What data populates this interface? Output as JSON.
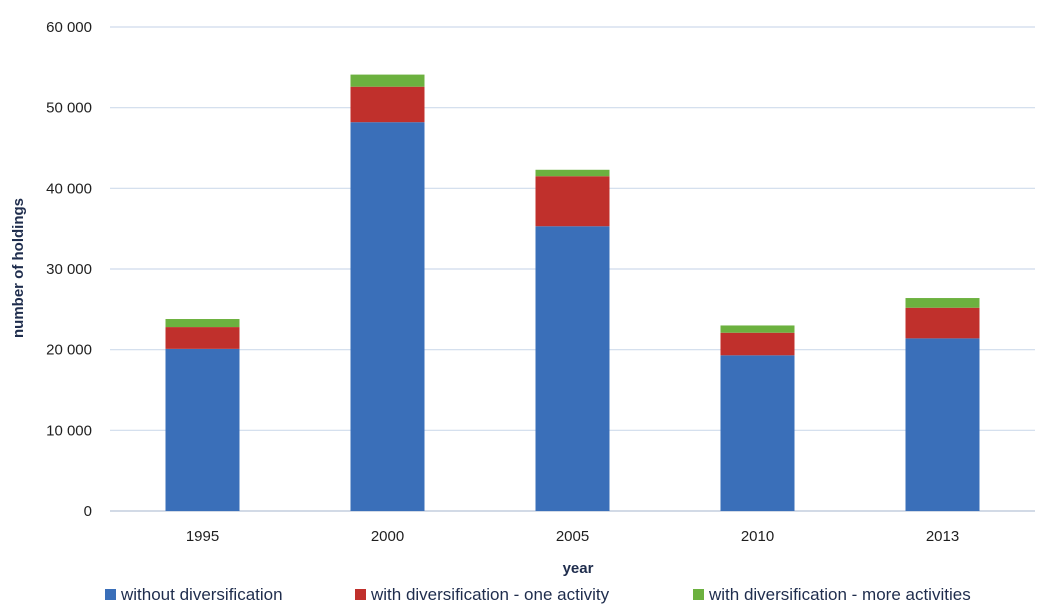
{
  "chart_data": {
    "type": "bar",
    "stacked": true,
    "categories": [
      "1995",
      "2000",
      "2005",
      "2010",
      "2013"
    ],
    "series": [
      {
        "name": "without diversification",
        "color": "#3a6fb9",
        "values": [
          20100,
          48200,
          35300,
          19300,
          21400
        ]
      },
      {
        "name": "with diversification - one activity",
        "color": "#c0302c",
        "values": [
          2700,
          4400,
          6200,
          2800,
          3800
        ]
      },
      {
        "name": "with diversification - more activities",
        "color": "#6cb13f",
        "values": [
          1000,
          1500,
          800,
          900,
          1200
        ]
      }
    ],
    "title": "",
    "xlabel": "year",
    "ylabel": "number of holdings",
    "ylim": [
      0,
      60000
    ],
    "yticks": [
      "0",
      "10 000",
      "20 000",
      "30 000",
      "40 000",
      "50 000",
      "60 000"
    ],
    "grid": true,
    "legend_position": "bottom"
  }
}
